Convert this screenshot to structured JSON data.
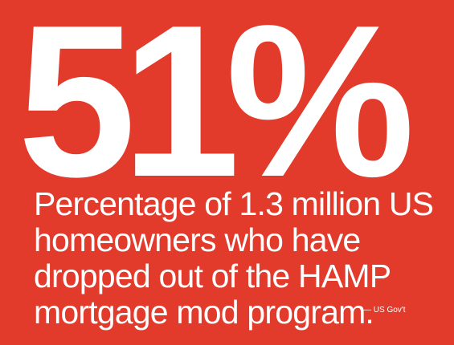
{
  "stat": {
    "value": "51%"
  },
  "caption": {
    "text": "Percentage of 1.3 million US\nhomeowners who have\ndropped out of the HAMP\nmortgage mod program."
  },
  "source": {
    "text": "— US Gov't"
  },
  "colors": {
    "background": "#e23a2b",
    "text": "#ffffff"
  }
}
